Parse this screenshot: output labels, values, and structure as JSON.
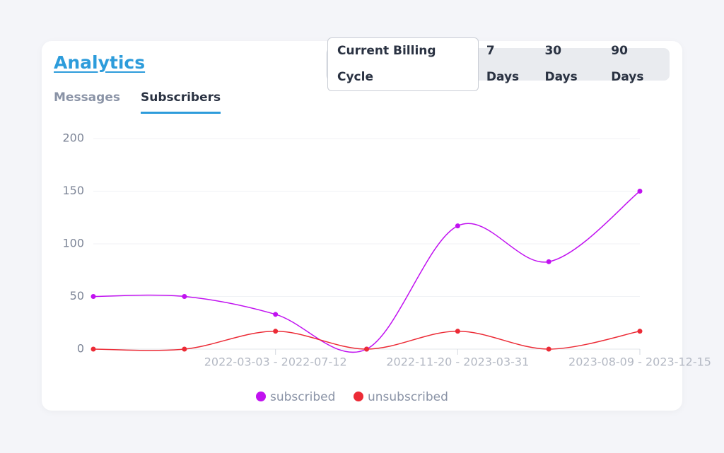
{
  "header": {
    "title": "Analytics",
    "ranges": [
      "Current Billing Cycle",
      "7 Days",
      "30 Days",
      "90 Days"
    ],
    "tabs": [
      "Messages",
      "Subscribers"
    ]
  },
  "chart_data": {
    "type": "line",
    "categories": [
      null,
      null,
      "2022-03-03 - 2022-07-12",
      null,
      "2022-11-20 - 2023-03-31",
      null,
      "2023-08-09 - 2023-12-15"
    ],
    "series": [
      {
        "name": "subscribed",
        "color": "#c112f0",
        "values": [
          50,
          50,
          33,
          0,
          117,
          83,
          150
        ]
      },
      {
        "name": "unsubscribed",
        "color": "#ec2b36",
        "values": [
          0,
          0,
          17,
          0,
          17,
          0,
          17
        ]
      }
    ],
    "ylim": [
      0,
      200
    ],
    "yticks": [
      0,
      50,
      100,
      150,
      200
    ],
    "grid": true
  }
}
